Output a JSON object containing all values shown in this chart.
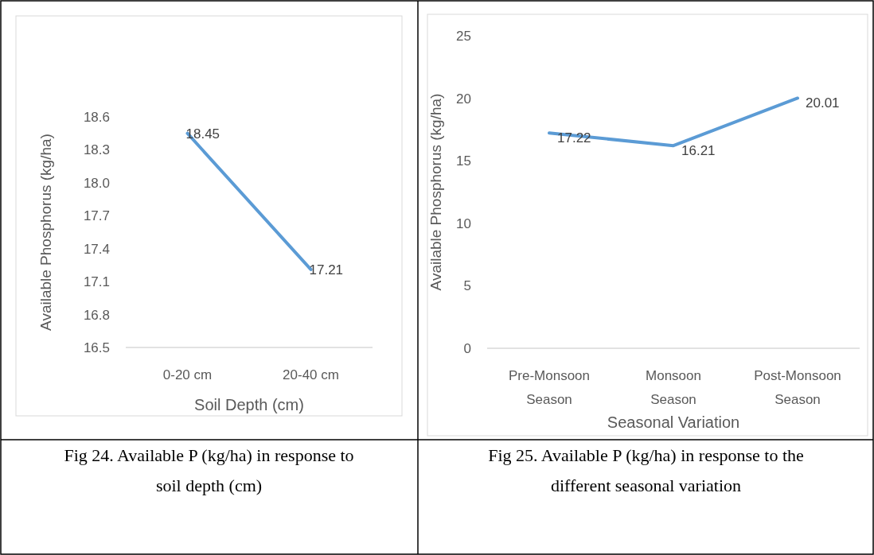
{
  "chart_data": [
    {
      "type": "line",
      "categories": [
        "0-20 cm",
        "20-40 cm"
      ],
      "series": [
        {
          "color": "#5b9bd5",
          "values": [
            18.45,
            17.21
          ]
        }
      ],
      "ylim": [
        16.5,
        18.6
      ],
      "yticks": [
        16.5,
        16.8,
        17.1,
        17.4,
        17.7,
        {
          "value": 18,
          "label": "18.0"
        },
        18.3,
        18.6
      ],
      "xlabel": "Soil Depth (cm)",
      "ylabel": "Available Phosphorus (kg/ha)",
      "data_labels": true,
      "grid": false,
      "marker": "none",
      "line_style": "solid",
      "annotations": [
        "Fig 24. Available P (kg/ha) in response to soil depth (cm)"
      ]
    },
    {
      "type": "line",
      "categories": [
        "Pre-Monsoon Season",
        "Monsoon Season",
        "Post-Monsoon Season"
      ],
      "series": [
        {
          "color": "#5b9bd5",
          "values": [
            17.22,
            16.21,
            20.01
          ]
        }
      ],
      "ylim": [
        0,
        25
      ],
      "yticks": [
        0,
        5,
        10,
        15,
        20,
        25
      ],
      "xlabel": "Seasonal Variation",
      "ylabel": "Available Phosphorus (kg/ha)",
      "data_labels": true,
      "grid": false,
      "marker": "none",
      "line_style": "solid",
      "annotations": [
        "Fig 25. Available P (kg/ha) in response to the different seasonal variation"
      ]
    }
  ]
}
